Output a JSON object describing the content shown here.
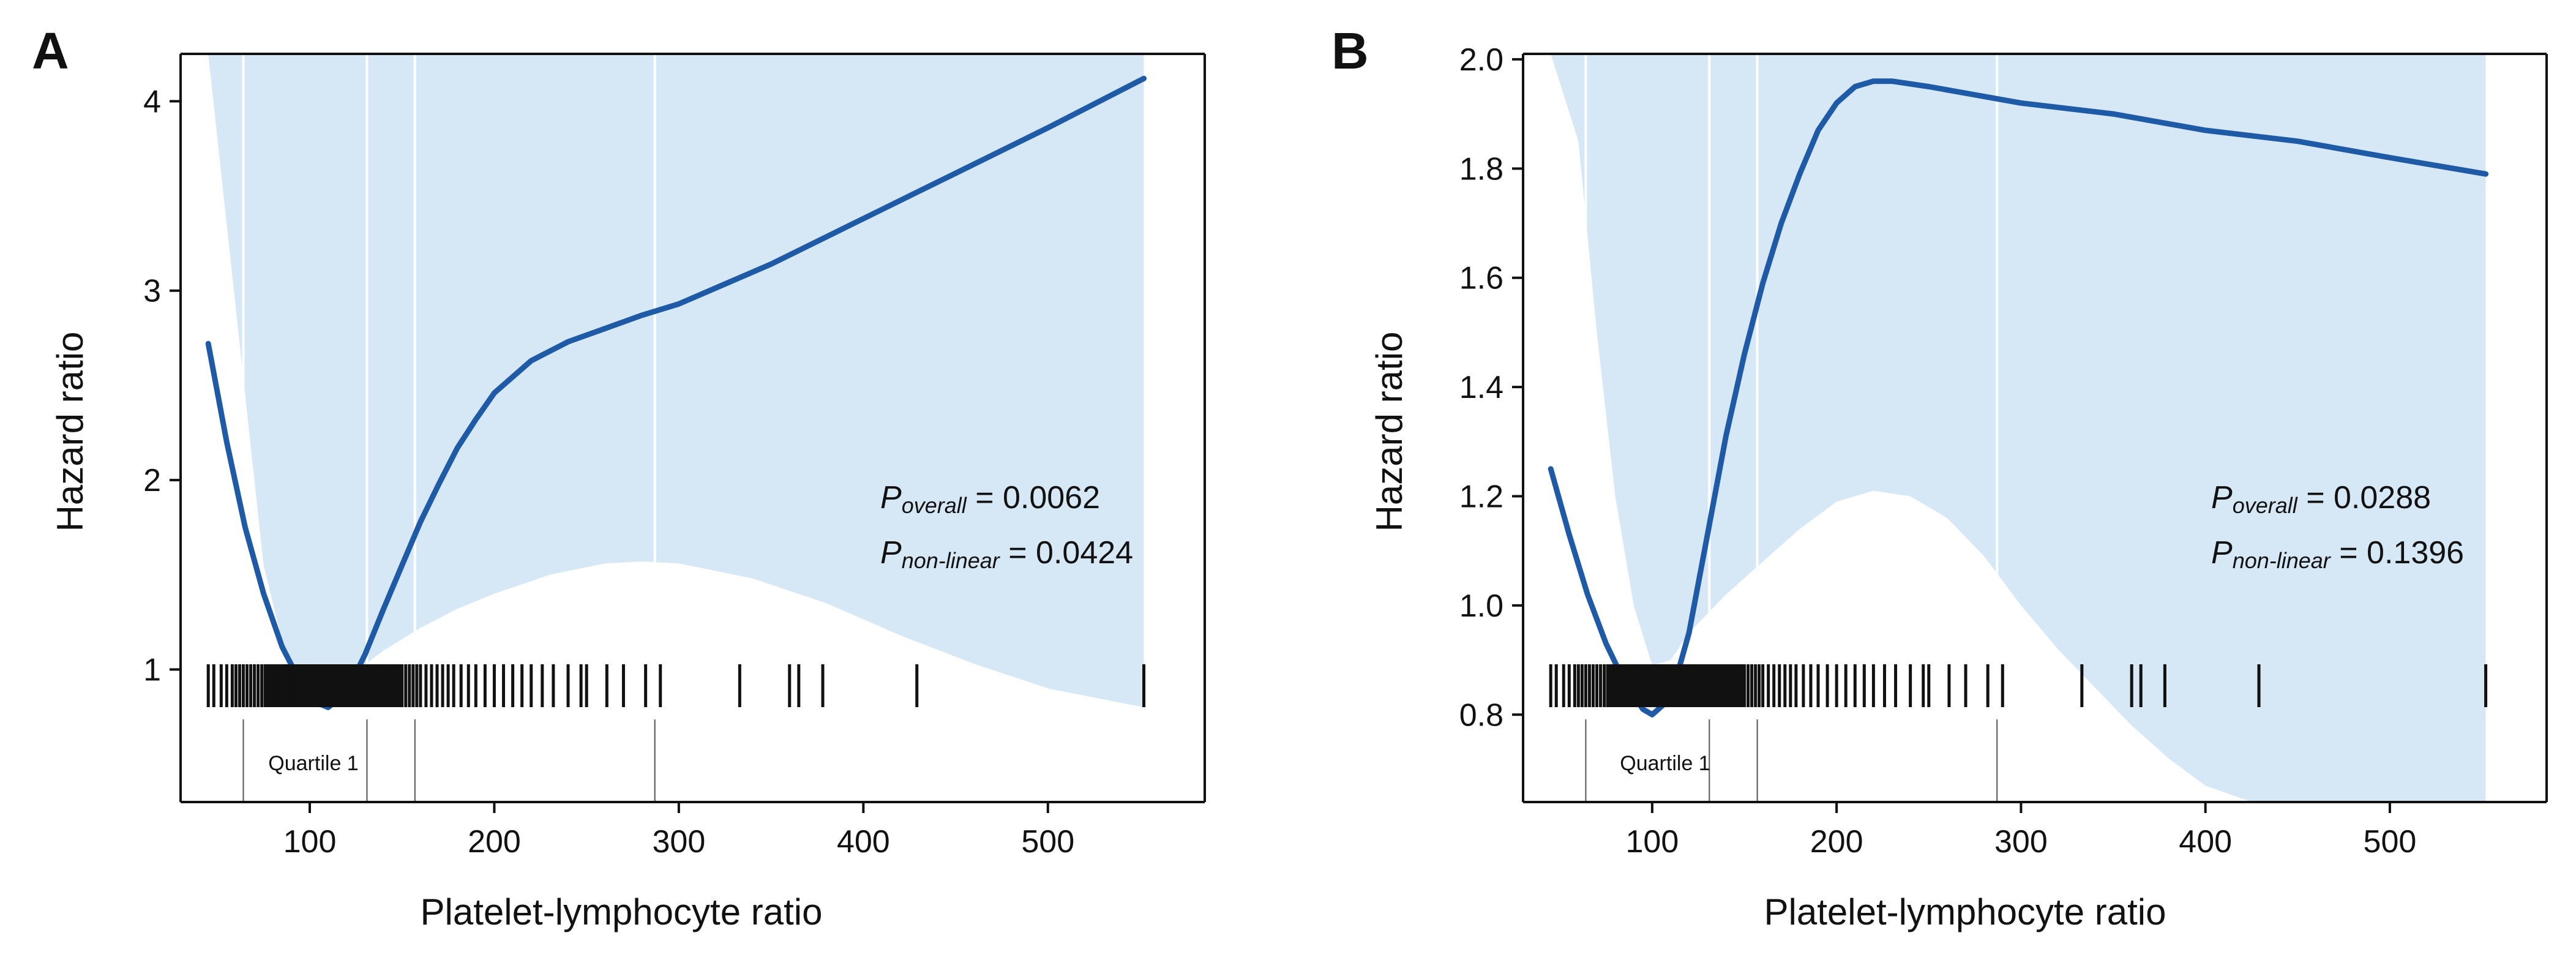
{
  "chart_data": [
    {
      "panel": "A",
      "type": "line",
      "xlabel": "Platelet-lymphocyte ratio",
      "ylabel": "Hazard ratio",
      "xlim": [
        30,
        585
      ],
      "ylim": [
        0.3,
        4.25
      ],
      "x_ticks": [
        100,
        200,
        300,
        400,
        500
      ],
      "y_ticks": [
        1,
        2,
        3,
        4
      ],
      "y_tick_labels": [
        "1",
        "2",
        "3",
        "4"
      ],
      "colors": {
        "line": "#1f5aa6",
        "band": "#d6e8f6",
        "rug": "#111111"
      },
      "series": [
        {
          "name": "Hazard ratio",
          "x": [
            45,
            55,
            65,
            75,
            85,
            95,
            105,
            110,
            120,
            130,
            140,
            150,
            160,
            170,
            180,
            190,
            200,
            220,
            240,
            260,
            280,
            300,
            350,
            400,
            450,
            500,
            552
          ],
          "y": [
            2.72,
            2.2,
            1.75,
            1.4,
            1.12,
            0.93,
            0.82,
            0.8,
            0.88,
            1.08,
            1.32,
            1.55,
            1.78,
            1.98,
            2.17,
            2.32,
            2.46,
            2.63,
            2.73,
            2.8,
            2.87,
            2.93,
            3.14,
            3.38,
            3.62,
            3.86,
            4.12
          ]
        }
      ],
      "ci_lower": {
        "x": [
          45,
          60,
          75,
          90,
          100,
          110,
          120,
          140,
          160,
          180,
          200,
          230,
          260,
          280,
          300,
          340,
          380,
          420,
          460,
          500,
          552
        ],
        "y": [
          4.25,
          2.9,
          1.55,
          0.95,
          0.82,
          0.78,
          0.95,
          1.1,
          1.22,
          1.32,
          1.4,
          1.5,
          1.56,
          1.57,
          1.56,
          1.48,
          1.35,
          1.18,
          1.03,
          0.9,
          0.8
        ]
      },
      "ci_upper": {
        "x": [
          45,
          552
        ],
        "y": [
          4.25,
          4.25
        ]
      },
      "annotations": {
        "p_overall_label": "P",
        "p_overall_sub": "overall",
        "p_overall_value": " = 0.0062",
        "p_nonlinear_label": "P",
        "p_nonlinear_sub": "non-linear",
        "p_nonlinear_value": " = 0.0424",
        "quartile_label": "Quartile 1"
      },
      "quartile_lines_x": [
        64,
        131,
        157,
        287
      ],
      "rug_x": [
        45,
        48,
        52,
        55,
        58,
        60,
        62,
        64,
        66,
        68,
        70,
        72,
        74,
        76,
        78,
        80,
        82,
        84,
        86,
        88,
        90,
        92,
        94,
        96,
        98,
        100,
        102,
        104,
        106,
        108,
        110,
        112,
        114,
        116,
        118,
        120,
        122,
        124,
        126,
        128,
        130,
        132,
        134,
        136,
        138,
        140,
        142,
        144,
        146,
        148,
        150,
        152,
        154,
        156,
        158,
        160,
        163,
        166,
        169,
        172,
        175,
        178,
        182,
        186,
        190,
        195,
        200,
        205,
        210,
        215,
        220,
        226,
        232,
        240,
        247,
        250,
        261,
        270,
        282,
        290,
        333,
        360,
        365,
        378,
        429,
        552
      ],
      "dense_band": [
        75,
        150
      ]
    },
    {
      "panel": "B",
      "type": "line",
      "xlabel": "Platelet-lymphocyte ratio",
      "ylabel": "Hazard ratio",
      "xlim": [
        30,
        585
      ],
      "ylim": [
        0.64,
        2.01
      ],
      "x_ticks": [
        100,
        200,
        300,
        400,
        500
      ],
      "y_ticks": [
        0.8,
        1.0,
        1.2,
        1.4,
        1.6,
        1.8,
        2.0
      ],
      "y_tick_labels": [
        "0.8",
        "1.0",
        "1.2",
        "1.4",
        "1.6",
        "1.8",
        "2.0"
      ],
      "colors": {
        "line": "#1f5aa6",
        "band": "#d6e8f6",
        "rug": "#111111"
      },
      "series": [
        {
          "name": "Hazard ratio",
          "x": [
            45,
            55,
            65,
            75,
            85,
            95,
            100,
            110,
            120,
            130,
            140,
            150,
            160,
            170,
            180,
            190,
            200,
            210,
            220,
            230,
            250,
            300,
            350,
            400,
            450,
            500,
            552
          ],
          "y": [
            1.25,
            1.13,
            1.02,
            0.93,
            0.86,
            0.81,
            0.8,
            0.83,
            0.95,
            1.13,
            1.31,
            1.46,
            1.59,
            1.7,
            1.79,
            1.87,
            1.92,
            1.95,
            1.96,
            1.96,
            1.95,
            1.92,
            1.9,
            1.87,
            1.85,
            1.82,
            1.79
          ]
        }
      ],
      "ci_lower": {
        "x": [
          45,
          60,
          70,
          80,
          90,
          100,
          110,
          120,
          140,
          160,
          180,
          200,
          220,
          240,
          260,
          280,
          300,
          320,
          340,
          360,
          380,
          400,
          425
        ],
        "y": [
          2.01,
          1.85,
          1.5,
          1.2,
          1.0,
          0.89,
          0.9,
          0.95,
          1.02,
          1.08,
          1.14,
          1.19,
          1.21,
          1.2,
          1.16,
          1.09,
          1.0,
          0.92,
          0.85,
          0.78,
          0.72,
          0.67,
          0.64
        ]
      },
      "ci_upper": {
        "x": [
          45,
          552
        ],
        "y": [
          2.01,
          2.01
        ]
      },
      "annotations": {
        "p_overall_label": "P",
        "p_overall_sub": "overall",
        "p_overall_value": " = 0.0288",
        "p_nonlinear_label": "P",
        "p_nonlinear_sub": "non-linear",
        "p_nonlinear_value": " = 0.1396",
        "quartile_label": "Quartile 1"
      },
      "quartile_lines_x": [
        64,
        131,
        157,
        287
      ],
      "rug_x": [
        45,
        48,
        52,
        55,
        58,
        60,
        62,
        64,
        66,
        68,
        70,
        72,
        74,
        76,
        78,
        80,
        82,
        84,
        86,
        88,
        90,
        92,
        94,
        96,
        98,
        100,
        102,
        104,
        106,
        108,
        110,
        112,
        114,
        116,
        118,
        120,
        122,
        124,
        126,
        128,
        130,
        132,
        134,
        136,
        138,
        140,
        142,
        144,
        146,
        148,
        150,
        152,
        154,
        156,
        158,
        160,
        163,
        166,
        169,
        172,
        175,
        178,
        182,
        186,
        190,
        195,
        200,
        205,
        210,
        215,
        220,
        226,
        232,
        240,
        247,
        250,
        261,
        270,
        282,
        290,
        333,
        360,
        365,
        378,
        429,
        552
      ],
      "dense_band": [
        75,
        150
      ]
    }
  ]
}
